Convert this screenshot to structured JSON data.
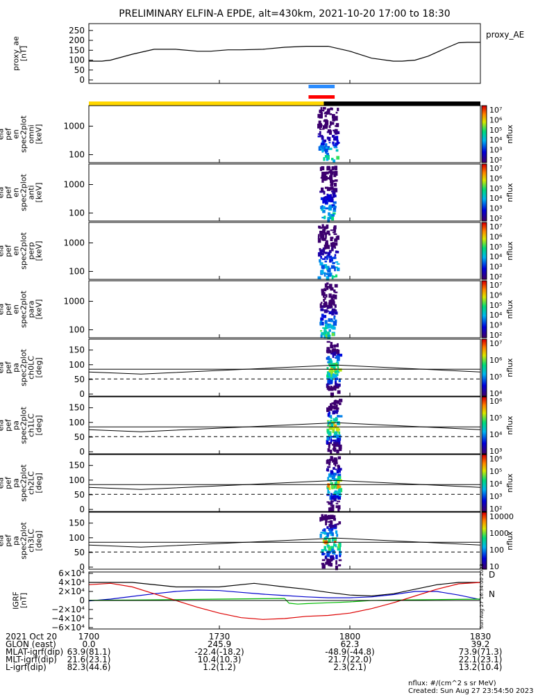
{
  "title": "PRELIMINARY ELFIN-A EPDE, alt=430km, 2021-10-20 17:00 to 18:30",
  "chart_data": {
    "type": "heatmap",
    "x_range": [
      "17:00",
      "18:30"
    ],
    "x_ticks": [
      "1700",
      "1730",
      "1800",
      "1830"
    ],
    "panels": [
      {
        "id": "proxy_ae",
        "type": "line",
        "ylabel": [
          "proxy_ae",
          "[nT]"
        ],
        "right_label": "proxy_AE",
        "yticks": [
          "250",
          "200",
          "150",
          "100",
          "50",
          "0"
        ],
        "ylim": [
          0,
          260
        ],
        "series": [
          {
            "color": "#000000",
            "x": [
              0,
              3,
              5,
              10,
              15,
              20,
              25,
              28,
              32,
              35,
              40,
              45,
              50,
              55,
              60,
              65,
              70,
              72,
              75,
              78,
              82,
              85,
              87,
              88,
              90
            ],
            "y": [
              95,
              95,
              100,
              130,
              155,
              155,
              145,
              145,
              152,
              152,
              155,
              165,
              170,
              170,
              145,
              110,
              95,
              95,
              100,
              120,
              160,
              188,
              190,
              190,
              190
            ]
          }
        ]
      },
      {
        "id": "en_omni",
        "type": "heatmap",
        "ylabel": [
          "ela",
          "pef",
          "en",
          "spec2plot",
          "omni",
          "[keV]"
        ],
        "yticks": [
          "1000",
          "100"
        ],
        "ylog": true,
        "zlabel": "nflux",
        "zticks": [
          "10⁷",
          "10⁶",
          "10⁵",
          "10⁴",
          "10³",
          "10²"
        ],
        "activity_x": [
          52.5,
          57
        ]
      },
      {
        "id": "en_anti",
        "type": "heatmap",
        "ylabel": [
          "ela",
          "pef",
          "en",
          "spec2plot",
          "anti",
          "[keV]"
        ],
        "yticks": [
          "1000",
          "100"
        ],
        "ylog": true,
        "zlabel": "nflux",
        "zticks": [
          "10⁷",
          "10⁶",
          "10⁵",
          "10⁴",
          "10³",
          "10²"
        ],
        "activity_x": [
          53,
          56.5
        ]
      },
      {
        "id": "en_perp",
        "type": "heatmap",
        "ylabel": [
          "ela",
          "pef",
          "en",
          "spec2plot",
          "perp",
          "[keV]"
        ],
        "yticks": [
          "1000",
          "100"
        ],
        "ylog": true,
        "zlabel": "nflux",
        "zticks": [
          "10⁷",
          "10⁶",
          "10⁵",
          "10⁴",
          "10³",
          "10²"
        ],
        "activity_x": [
          52.5,
          57
        ]
      },
      {
        "id": "en_para",
        "type": "heatmap",
        "ylabel": [
          "ela",
          "pef",
          "en",
          "spec2plot",
          "para",
          "[keV]"
        ],
        "yticks": [
          "1000",
          "100"
        ],
        "ylog": true,
        "zlabel": "nflux",
        "zticks": [
          "10⁷",
          "10⁶",
          "10⁵",
          "10⁴",
          "10³",
          "10²"
        ],
        "activity_x": [
          53,
          56.5
        ]
      },
      {
        "id": "pa_ch0",
        "type": "heatmap",
        "ylabel": [
          "ela",
          "pef",
          "pa",
          "spec2plot",
          "ch0LC",
          "[deg]"
        ],
        "yticks": [
          "150",
          "100",
          "50",
          "0"
        ],
        "ylim": [
          0,
          180
        ],
        "zlabel": "nflux",
        "zticks": [
          "10⁷",
          "10⁶",
          "10⁵",
          "10⁴"
        ],
        "activity_x": [
          54.5,
          57.5
        ]
      },
      {
        "id": "pa_ch1",
        "type": "heatmap",
        "ylabel": [
          "ela",
          "pef",
          "pa",
          "spec2plot",
          "ch1LC",
          "[deg]"
        ],
        "yticks": [
          "150",
          "100",
          "50",
          "0"
        ],
        "ylim": [
          0,
          180
        ],
        "zlabel": "nflux",
        "zticks": [
          "10⁶",
          "10⁵",
          "10⁴",
          "10³"
        ],
        "activity_x": [
          54.5,
          57.5
        ]
      },
      {
        "id": "pa_ch2",
        "type": "heatmap",
        "ylabel": [
          "ela",
          "pef",
          "pa",
          "spec2plot",
          "ch2LC",
          "[deg]"
        ],
        "yticks": [
          "150",
          "100",
          "50",
          "0"
        ],
        "ylim": [
          0,
          180
        ],
        "zlabel": "nflux",
        "zticks": [
          "10⁶",
          "10⁵",
          "10⁴",
          "10³",
          "10²"
        ],
        "activity_x": [
          54.5,
          57.5
        ]
      },
      {
        "id": "pa_ch3",
        "type": "heatmap",
        "ylabel": [
          "ela",
          "pef",
          "pa",
          "spec2plot",
          "ch3LC",
          "[deg]"
        ],
        "yticks": [
          "150",
          "100",
          "50",
          "0"
        ],
        "ylim": [
          0,
          180
        ],
        "zlabel": "nflux",
        "zticks": [
          "10000",
          "1000",
          "100",
          "10"
        ],
        "activity_x": [
          53,
          57.5
        ]
      },
      {
        "id": "igrf",
        "type": "line",
        "ylabel": [
          "IGRF",
          "[nT]"
        ],
        "yticks": [
          "6×10⁴",
          "4×10⁴",
          "2×10⁴",
          "0",
          "−2×10⁴",
          "−4×10⁴",
          "−6×10⁴"
        ],
        "ylim": [
          -60000,
          60000
        ],
        "right_labels": [
          "D",
          "N"
        ],
        "side_text": "Sun Aug 27 16:34:00 2023",
        "series": [
          {
            "color": "#000000",
            "x": [
              0,
              10,
              20,
              30,
              38,
              45,
              50,
              55,
              60,
              65,
              70,
              75,
              80,
              85,
              90
            ],
            "y": [
              40000,
              40000,
              30000,
              30000,
              38000,
              30000,
              25000,
              18000,
              12000,
              10000,
              15000,
              25000,
              35000,
              40000,
              40000
            ]
          },
          {
            "color": "#0000cc",
            "x": [
              0,
              5,
              10,
              15,
              20,
              25,
              30,
              35,
              40,
              45,
              50,
              55,
              60,
              65,
              70,
              75,
              80,
              85,
              90
            ],
            "y": [
              -1000,
              3000,
              9000,
              15000,
              20000,
              23000,
              22000,
              18000,
              14000,
              11000,
              8000,
              6000,
              6000,
              8000,
              13000,
              20000,
              20000,
              12000,
              2000
            ]
          },
          {
            "color": "#00bb00",
            "x": [
              0,
              10,
              20,
              30,
              40,
              45,
              46,
              48,
              50,
              55,
              60,
              65,
              70,
              80,
              90
            ],
            "y": [
              500,
              1000,
              2000,
              3000,
              4000,
              4500,
              -6000,
              -8000,
              -7000,
              -5000,
              -3000,
              0,
              1000,
              2000,
              3000
            ]
          },
          {
            "color": "#dd0000",
            "x": [
              0,
              5,
              10,
              15,
              20,
              25,
              30,
              35,
              40,
              45,
              50,
              55,
              60,
              65,
              70,
              75,
              80,
              85,
              90
            ],
            "y": [
              35000,
              38000,
              30000,
              15000,
              0,
              -15000,
              -28000,
              -38000,
              -42000,
              -40000,
              -35000,
              -33000,
              -28000,
              -18000,
              -5000,
              10000,
              25000,
              37000,
              40000
            ]
          }
        ]
      }
    ]
  },
  "bars": {
    "blue": {
      "color": "#2b8cff",
      "from": 50.5,
      "to": 56.5
    },
    "red": {
      "color": "#ff0000",
      "from": 50.5,
      "to": 56.5
    },
    "day": {
      "color": "#ffd700",
      "from": 0,
      "to": 54
    },
    "night": {
      "color": "#000000",
      "from": 54,
      "to": 90
    }
  },
  "orbit_table": {
    "rows": [
      {
        "label": "2021 Oct 20",
        "values": [
          "1700",
          "1730",
          "1800",
          "1830"
        ]
      },
      {
        "label": "GLON (east)",
        "values": [
          "0.0",
          "245.9",
          "62.3",
          "39.2"
        ]
      },
      {
        "label": "MLAT-igrf(dip)",
        "values": [
          "63.9(81.1)",
          "-22.4(-18.2)",
          "-48.9(-44.8)",
          "73.9(71.3)"
        ]
      },
      {
        "label": "MLT-igrf(dip)",
        "values": [
          "21.6(23.1)",
          "10.4(10.3)",
          "21.7(22.0)",
          "22.1(23.1)"
        ]
      },
      {
        "label": "L-igrf(dip)",
        "values": [
          "82.3(44.6)",
          "1.2(1.2)",
          "2.3(2.1)",
          "13.2(10.4)"
        ]
      }
    ]
  },
  "footer": {
    "units": "nflux: #/(cm^2 s sr MeV)",
    "created": "Created: Sun Aug 27 23:54:50 2023"
  }
}
